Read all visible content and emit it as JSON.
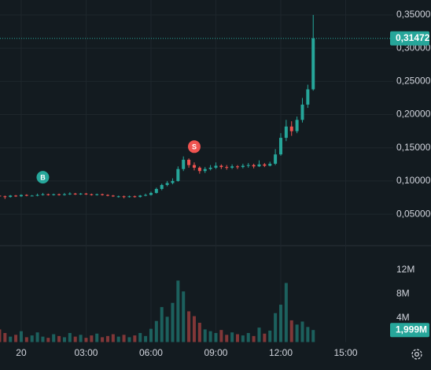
{
  "chart_data": {
    "type": "candlestick",
    "up_color": "#26a69a",
    "down_color": "#ef5350",
    "grid": true,
    "x": [
      -1,
      -0.75,
      -0.5,
      -0.25,
      0,
      0.25,
      0.5,
      0.75,
      1,
      1.25,
      1.5,
      1.75,
      2,
      2.25,
      2.5,
      2.75,
      3,
      3.25,
      3.5,
      3.75,
      4,
      4.25,
      4.5,
      4.75,
      5,
      5.25,
      5.5,
      5.75,
      6,
      6.25,
      6.5,
      6.75,
      7,
      7.25,
      7.5,
      7.75,
      8,
      8.25,
      8.5,
      8.75,
      9,
      9.25,
      9.5,
      9.75,
      10,
      10.25,
      10.5,
      10.75,
      11,
      11.25,
      11.5,
      11.75,
      12,
      12.25,
      12.5,
      12.75,
      13,
      13.25,
      13.5
    ],
    "open": [
      0.078,
      0.077,
      0.076,
      0.078,
      0.077,
      0.079,
      0.078,
      0.078,
      0.079,
      0.08,
      0.079,
      0.08,
      0.079,
      0.08,
      0.081,
      0.08,
      0.081,
      0.08,
      0.079,
      0.08,
      0.079,
      0.078,
      0.077,
      0.077,
      0.076,
      0.077,
      0.076,
      0.078,
      0.079,
      0.082,
      0.088,
      0.094,
      0.097,
      0.1,
      0.118,
      0.132,
      0.124,
      0.12,
      0.115,
      0.118,
      0.12,
      0.123,
      0.121,
      0.12,
      0.122,
      0.121,
      0.123,
      0.124,
      0.122,
      0.125,
      0.123,
      0.126,
      0.14,
      0.165,
      0.182,
      0.175,
      0.192,
      0.215,
      0.238
    ],
    "high": [
      0.08,
      0.078,
      0.079,
      0.079,
      0.08,
      0.08,
      0.079,
      0.081,
      0.082,
      0.081,
      0.081,
      0.081,
      0.082,
      0.083,
      0.082,
      0.082,
      0.082,
      0.081,
      0.081,
      0.081,
      0.08,
      0.079,
      0.078,
      0.078,
      0.078,
      0.078,
      0.079,
      0.081,
      0.084,
      0.09,
      0.096,
      0.1,
      0.104,
      0.122,
      0.137,
      0.134,
      0.128,
      0.122,
      0.121,
      0.124,
      0.128,
      0.125,
      0.124,
      0.125,
      0.124,
      0.126,
      0.127,
      0.126,
      0.131,
      0.127,
      0.129,
      0.148,
      0.172,
      0.192,
      0.19,
      0.197,
      0.225,
      0.245,
      0.35
    ],
    "low": [
      0.075,
      0.073,
      0.075,
      0.076,
      0.076,
      0.077,
      0.077,
      0.077,
      0.078,
      0.078,
      0.078,
      0.078,
      0.078,
      0.079,
      0.079,
      0.079,
      0.079,
      0.078,
      0.078,
      0.078,
      0.077,
      0.076,
      0.075,
      0.074,
      0.075,
      0.075,
      0.075,
      0.077,
      0.078,
      0.081,
      0.086,
      0.092,
      0.095,
      0.099,
      0.115,
      0.12,
      0.116,
      0.111,
      0.112,
      0.116,
      0.118,
      0.118,
      0.117,
      0.118,
      0.118,
      0.119,
      0.12,
      0.119,
      0.121,
      0.121,
      0.122,
      0.124,
      0.138,
      0.16,
      0.168,
      0.172,
      0.188,
      0.21,
      0.236
    ],
    "close": [
      0.077,
      0.076,
      0.078,
      0.077,
      0.079,
      0.078,
      0.078,
      0.079,
      0.08,
      0.079,
      0.08,
      0.079,
      0.08,
      0.081,
      0.08,
      0.081,
      0.08,
      0.079,
      0.08,
      0.079,
      0.078,
      0.077,
      0.077,
      0.076,
      0.077,
      0.076,
      0.078,
      0.079,
      0.082,
      0.088,
      0.094,
      0.097,
      0.1,
      0.118,
      0.132,
      0.124,
      0.12,
      0.115,
      0.118,
      0.12,
      0.123,
      0.121,
      0.12,
      0.122,
      0.121,
      0.123,
      0.124,
      0.122,
      0.125,
      0.123,
      0.126,
      0.14,
      0.165,
      0.182,
      0.175,
      0.192,
      0.215,
      0.238,
      0.31472
    ],
    "volume": [
      2100000,
      1500000,
      900000,
      1200000,
      1800000,
      800000,
      1100000,
      1600000,
      900000,
      700000,
      1300000,
      1000000,
      800000,
      1500000,
      900000,
      1200000,
      700000,
      1100000,
      1400000,
      800000,
      1000000,
      1300000,
      900000,
      1200000,
      800000,
      1100000,
      1500000,
      1000000,
      2200000,
      3500000,
      5800000,
      4200000,
      6500000,
      10200000,
      8400000,
      5100000,
      4300000,
      3200000,
      2100000,
      1800000,
      1500000,
      2000000,
      1200000,
      1600000,
      1300000,
      1100000,
      1500000,
      1000000,
      2400000,
      1400000,
      1900000,
      4800000,
      6200000,
      9800000,
      3600000,
      2900000,
      3400000,
      2500000,
      1999000
    ],
    "xlim": [
      -0.98,
      17.2
    ],
    "xticks": [
      {
        "value": 0,
        "label": "20"
      },
      {
        "value": 3,
        "label": "03:00"
      },
      {
        "value": 6,
        "label": "06:00"
      },
      {
        "value": 9,
        "label": "09:00"
      },
      {
        "value": 12,
        "label": "12:00"
      },
      {
        "value": 15,
        "label": "15:00"
      }
    ],
    "ylim": [
      0.0027,
      0.3725
    ],
    "yticks": [
      {
        "value": 0.35,
        "label": "0,35000"
      },
      {
        "value": 0.3,
        "label": "0,30000"
      },
      {
        "value": 0.25,
        "label": "0,25000"
      },
      {
        "value": 0.2,
        "label": "0,20000"
      },
      {
        "value": 0.15,
        "label": "0,15000"
      },
      {
        "value": 0.1,
        "label": "0,10000"
      },
      {
        "value": 0.05,
        "label": "0,050000"
      }
    ],
    "y2lim": [
      0,
      16000000
    ],
    "y2ticks": [
      {
        "value": 12000000,
        "label": "12M"
      },
      {
        "value": 8000000,
        "label": "8M"
      },
      {
        "value": 4000000,
        "label": "4M"
      }
    ],
    "last_price": {
      "value": 0.31472,
      "label": "0,31472"
    },
    "last_volume": {
      "value": 1999000,
      "label": "1,999M"
    },
    "markers": [
      {
        "x": 1,
        "text": "B",
        "color": "#26a69a"
      },
      {
        "x": 8,
        "text": "S",
        "color": "#ef5350"
      }
    ]
  }
}
